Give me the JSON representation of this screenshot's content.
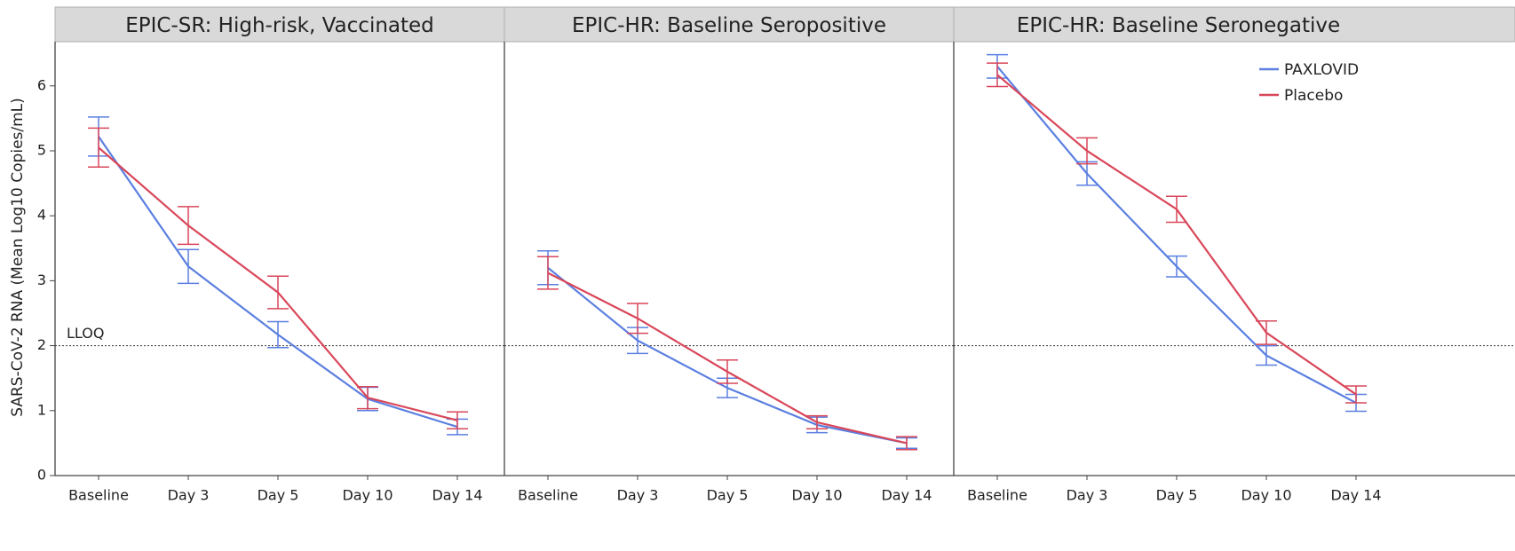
{
  "chart_data": [
    {
      "type": "line",
      "title": "EPIC-SR: High-risk, Vaccinated",
      "y_label": "SARS-CoV-2 RNA (Mean Log10 Copies/mL)",
      "categories": [
        "Baseline",
        "Day 3",
        "Day 5",
        "Day 10",
        "Day 14"
      ],
      "series": [
        {
          "name": "PAXLOVID",
          "color": "#5b7fe0",
          "values": [
            5.22,
            3.22,
            2.17,
            1.18,
            0.75
          ],
          "errors": [
            0.3,
            0.26,
            0.2,
            0.18,
            0.12
          ]
        },
        {
          "name": "Placebo",
          "color": "#d9475a",
          "values": [
            5.05,
            3.85,
            2.82,
            1.2,
            0.85
          ],
          "errors": [
            0.3,
            0.29,
            0.25,
            0.17,
            0.13
          ]
        }
      ],
      "ylim": [
        0,
        6.68
      ],
      "yticks": [
        0,
        1,
        2,
        3,
        4,
        5,
        6
      ],
      "reference_line": 2,
      "reference_label": "LLOQ"
    },
    {
      "type": "line",
      "title": "EPIC-HR: Baseline Seropositive",
      "categories": [
        "Baseline",
        "Day 3",
        "Day 5",
        "Day 10",
        "Day 14"
      ],
      "series": [
        {
          "name": "PAXLOVID",
          "color": "#5b7fe0",
          "values": [
            3.2,
            2.08,
            1.35,
            0.78,
            0.5
          ],
          "errors": [
            0.26,
            0.2,
            0.15,
            0.12,
            0.08
          ]
        },
        {
          "name": "Placebo",
          "color": "#d9475a",
          "values": [
            3.12,
            2.42,
            1.6,
            0.82,
            0.5
          ],
          "errors": [
            0.25,
            0.23,
            0.18,
            0.1,
            0.1
          ]
        }
      ],
      "ylim": [
        0,
        6.68
      ],
      "reference_line": 2
    },
    {
      "type": "line",
      "title": "EPIC-HR: Baseline Seronegative",
      "categories": [
        "Baseline",
        "Day 3",
        "Day 5",
        "Day 10",
        "Day 14"
      ],
      "series": [
        {
          "name": "PAXLOVID",
          "color": "#5b7fe0",
          "values": [
            6.3,
            4.65,
            3.22,
            1.85,
            1.12
          ],
          "errors": [
            0.18,
            0.18,
            0.16,
            0.15,
            0.13
          ]
        },
        {
          "name": "Placebo",
          "color": "#d9475a",
          "values": [
            6.17,
            5.0,
            4.1,
            2.2,
            1.25
          ],
          "errors": [
            0.18,
            0.2,
            0.2,
            0.18,
            0.13
          ]
        }
      ],
      "ylim": [
        0,
        6.68
      ],
      "reference_line": 2,
      "legend": "top-right"
    }
  ]
}
